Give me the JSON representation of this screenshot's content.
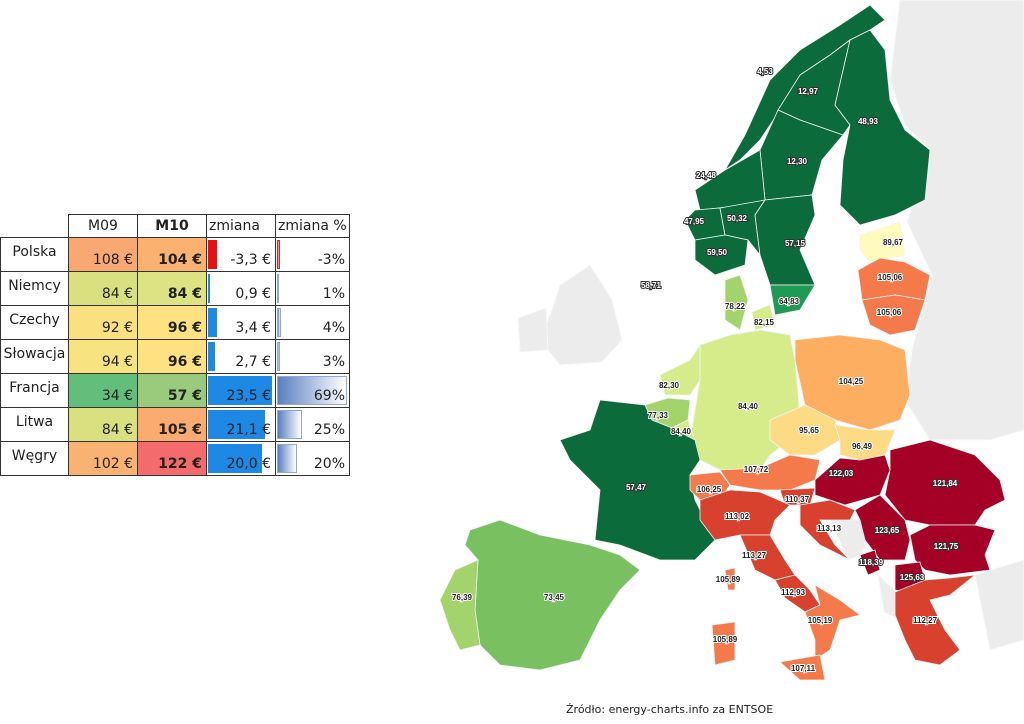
{
  "table": {
    "headers": [
      "",
      "M09",
      "M10",
      "zmiana",
      "zmiana %"
    ],
    "rows": [
      {
        "country": "Polska",
        "m09": "108 €",
        "m10": "104 €",
        "change": "-3,3 €",
        "change_value": -3.3,
        "pct": "-3%",
        "pct_value": -3,
        "m09_color": "#f8a870",
        "m10_color": "#fbb16f"
      },
      {
        "country": "Niemcy",
        "m09": "84 €",
        "m10": "84 €",
        "change": "0,9 €",
        "change_value": 0.9,
        "pct": "1%",
        "pct_value": 1,
        "m09_color": "#d9e080",
        "m10_color": "#dde282"
      },
      {
        "country": "Czechy",
        "m09": "92 €",
        "m10": "96 €",
        "change": "3,4 €",
        "change_value": 3.4,
        "pct": "4%",
        "pct_value": 4,
        "m09_color": "#fbe080",
        "m10_color": "#fee282"
      },
      {
        "country": "Słowacja",
        "m09": "94 €",
        "m10": "96 €",
        "change": "2,7 €",
        "change_value": 2.7,
        "pct": "3%",
        "pct_value": 3,
        "m09_color": "#f7e380",
        "m10_color": "#fee282"
      },
      {
        "country": "Francja",
        "m09": "34 €",
        "m10": "57 €",
        "change": "23,5 €",
        "change_value": 23.5,
        "pct": "69%",
        "pct_value": 69,
        "m09_color": "#63be7b",
        "m10_color": "#9aca7b"
      },
      {
        "country": "Litwa",
        "m09": "84 €",
        "m10": "105 €",
        "change": "21,1 €",
        "change_value": 21.1,
        "pct": "25%",
        "pct_value": 25,
        "m09_color": "#d9e080",
        "m10_color": "#fbaa70"
      },
      {
        "country": "Węgry",
        "m09": "102 €",
        "m10": "122 €",
        "change": "20,0 €",
        "change_value": 20.0,
        "pct": "20%",
        "pct_value": 20,
        "m09_color": "#fab272",
        "m10_color": "#f36b6b"
      }
    ],
    "positive_bar_color": "#1e88e5",
    "negative_bar_color": "#e81010"
  },
  "map": {
    "regions": {
      "no4": "4,53",
      "se1": "12,97",
      "fi": "48,93",
      "se2": "12,30",
      "no3": "24,48",
      "no5": "47,95",
      "no1": "50,32",
      "se3": "57,15",
      "no2": "59,50",
      "se4": "64,83",
      "gb": "58,71",
      "ee": "89,67",
      "lv": "105,06",
      "lt": "105,06",
      "dk1": "78,22",
      "dk2": "82,15",
      "pl": "104,25",
      "de": "84,40",
      "nl": "82,30",
      "be": "77,33",
      "lu": "84,40",
      "fr": "57,47",
      "cz": "95,65",
      "sk": "96,49",
      "at": "107,72",
      "ch": "106,25",
      "hu": "122,03",
      "ro": "121,84",
      "si": "110,37",
      "it_north": "113,02",
      "hr": "113,13",
      "rs": "123,65",
      "bg": "121,75",
      "me": "118,39",
      "mk": "125,63",
      "it_centre": "113,27",
      "it_csouth": "112,93",
      "it_south": "105,19",
      "corsica": "105,89",
      "sardinia": "105,89",
      "sicily": "107,11",
      "gr": "112,27",
      "es": "73,45",
      "pt": "76,39"
    }
  },
  "footer": "Źródło: energy-charts.info za ENTSOE"
}
